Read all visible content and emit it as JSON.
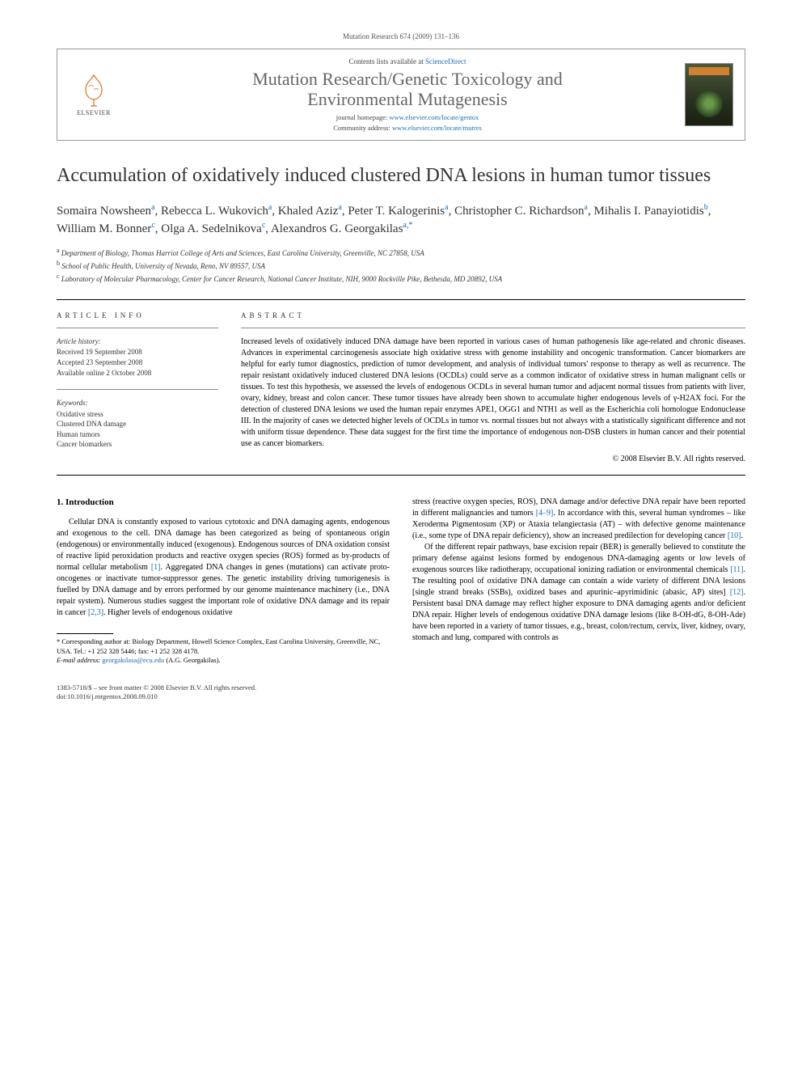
{
  "header": {
    "citation": "Mutation Research 674 (2009) 131–136",
    "contents_prefix": "Contents lists available at ",
    "contents_link": "ScienceDirect",
    "journal_name_l1": "Mutation Research/Genetic Toxicology and",
    "journal_name_l2": "Environmental Mutagenesis",
    "homepage_label": "journal homepage: ",
    "homepage_url": "www.elsevier.com/locate/gentox",
    "community_label": "Community address: ",
    "community_url": "www.elsevier.com/locate/mutres",
    "publisher": "ELSEVIER"
  },
  "article": {
    "title": "Accumulation of oxidatively induced clustered DNA lesions in human tumor tissues",
    "authors_html": "Somaira Nowsheen<sup>a</sup>, Rebecca L. Wukovich<sup>a</sup>, Khaled Aziz<sup>a</sup>, Peter T. Kalogerinis<sup>a</sup>, Christopher C. Richardson<sup>a</sup>, Mihalis I. Panayiotidis<sup>b</sup>, William M. Bonner<sup>c</sup>, Olga A. Sedelnikova<sup>c</sup>, Alexandros G. Georgakilas<sup>a,*</sup>",
    "affiliations": [
      {
        "key": "a",
        "text": "Department of Biology, Thomas Harriot College of Arts and Sciences, East Carolina University, Greenville, NC 27858, USA"
      },
      {
        "key": "b",
        "text": "School of Public Health, University of Nevada, Reno, NV 89557, USA"
      },
      {
        "key": "c",
        "text": "Laboratory of Molecular Pharmacology, Center for Cancer Research, National Cancer Institute, NIH, 9000 Rockville Pike, Bethesda, MD 20892, USA"
      }
    ]
  },
  "info": {
    "label": "ARTICLE INFO",
    "history_heading": "Article history:",
    "history": [
      "Received 19 September 2008",
      "Accepted 23 September 2008",
      "Available online 2 October 2008"
    ],
    "keywords_heading": "Keywords:",
    "keywords": [
      "Oxidative stress",
      "Clustered DNA damage",
      "Human tumors",
      "Cancer biomarkers"
    ]
  },
  "abstract": {
    "label": "ABSTRACT",
    "text": "Increased levels of oxidatively induced DNA damage have been reported in various cases of human pathogenesis like age-related and chronic diseases. Advances in experimental carcinogenesis associate high oxidative stress with genome instability and oncogenic transformation. Cancer biomarkers are helpful for early tumor diagnostics, prediction of tumor development, and analysis of individual tumors' response to therapy as well as recurrence. The repair resistant oxidatively induced clustered DNA lesions (OCDLs) could serve as a common indicator of oxidative stress in human malignant cells or tissues. To test this hypothesis, we assessed the levels of endogenous OCDLs in several human tumor and adjacent normal tissues from patients with liver, ovary, kidney, breast and colon cancer. These tumor tissues have already been shown to accumulate higher endogenous levels of γ-H2AX foci. For the detection of clustered DNA lesions we used the human repair enzymes APE1, OGG1 and NTH1 as well as the Escherichia coli homologue Endonuclease III. In the majority of cases we detected higher levels of OCDLs in tumor vs. normal tissues but not always with a statistically significant difference and not with uniform tissue dependence. These data suggest for the first time the importance of endogenous non-DSB clusters in human cancer and their potential use as cancer biomarkers.",
    "copyright": "© 2008 Elsevier B.V. All rights reserved."
  },
  "body": {
    "heading": "1. Introduction",
    "col1_p1": "Cellular DNA is constantly exposed to various cytotoxic and DNA damaging agents, endogenous and exogenous to the cell. DNA damage has been categorized as being of spontaneous origin (endogenous) or environmentally induced (exogenous). Endogenous sources of DNA oxidation consist of reactive lipid peroxidation products and reactive oxygen species (ROS) formed as by-products of normal cellular metabolism [1]. Aggregated DNA changes in genes (mutations) can activate proto-oncogenes or inactivate tumor-suppressor genes. The genetic instability driving tumorigenesis is fuelled by DNA damage and by errors performed by our genome maintenance machinery (i.e., DNA repair system). Numerous studies suggest the important role of oxidative DNA damage and its repair in cancer [2,3]. Higher levels of endogenous oxidative",
    "col2_p1": "stress (reactive oxygen species, ROS), DNA damage and/or defective DNA repair have been reported in different malignancies and tumors [4–9]. In accordance with this, several human syndromes – like Xeroderma Pigmentosum (XP) or Ataxia telangiectasia (AT) – with defective genome maintenance (i.e., some type of DNA repair deficiency), show an increased predilection for developing cancer [10].",
    "col2_p2": "Of the different repair pathways, base excision repair (BER) is generally believed to constitute the primary defense against lesions formed by endogenous DNA-damaging agents or low levels of exogenous sources like radiotherapy, occupational ionizing radiation or environmental chemicals [11]. The resulting pool of oxidative DNA damage can contain a wide variety of different DNA lesions [single strand breaks (SSBs), oxidized bases and apurinic–apyrimidinic (abasic, AP) sites] [12]. Persistent basal DNA damage may reflect higher exposure to DNA damaging agents and/or deficient DNA repair. Higher levels of endogenous oxidative DNA damage lesions (like 8-OH-dG, 8-OH-Ade) have been reported in a variety of tumor tissues, e.g., breast, colon/rectum, cervix, liver, kidney, ovary, stomach and lung, compared with controls as"
  },
  "footnote": {
    "corr": "* Corresponding author at: Biology Department, Howell Science Complex, East Carolina University, Greenville, NC, USA. Tel.: +1 252 328 5446; fax: +1 252 328 4178.",
    "email_label": "E-mail address: ",
    "email": "georgakilasa@ecu.edu",
    "email_who": " (A.G. Georgakilas)."
  },
  "footer": {
    "issn": "1383-5718/$ – see front matter © 2008 Elsevier B.V. All rights reserved.",
    "doi": "doi:10.1016/j.mrgentox.2008.09.010"
  },
  "colors": {
    "link": "#1a6db5",
    "text": "#000000",
    "muted": "#555555",
    "journal": "#666666",
    "rule": "#000000"
  }
}
